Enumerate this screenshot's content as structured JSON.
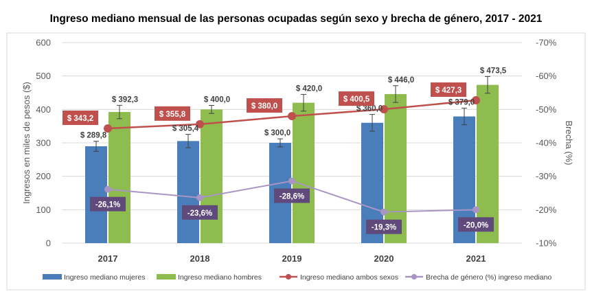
{
  "chart_data": {
    "type": "bar",
    "title": "Ingreso mediano mensual de las personas ocupadas según sexo y brecha de género, 2017 - 2021",
    "categories": [
      "2017",
      "2018",
      "2019",
      "2020",
      "2021"
    ],
    "ylabel": "Ingresos en miles de pesos ($)",
    "ylabel_right": "Brecha (%)",
    "ylim": [
      0,
      600
    ],
    "yticks": [
      "0",
      "100",
      "200",
      "300",
      "400",
      "500",
      "600"
    ],
    "ylim_right": [
      -10,
      -70
    ],
    "yticks_right": [
      "-10%",
      "-20%",
      "-30%",
      "-40%",
      "-50%",
      "-60%",
      "-70%"
    ],
    "grid": true,
    "legend_position": "bottom",
    "series": [
      {
        "name": "Ingreso mediano mujeres",
        "kind": "bar",
        "axis": "left",
        "color": "#4a7ebb",
        "values": [
          289.8,
          305.4,
          300.0,
          360.0,
          379.0
        ],
        "labels": [
          "$ 289,8",
          "$ 305,4",
          "$ 300,0",
          "$ 360,0",
          "$ 379,0"
        ],
        "errors": [
          15,
          20,
          12,
          25,
          25
        ]
      },
      {
        "name": "Ingreso mediano hombres",
        "kind": "bar",
        "axis": "left",
        "color": "#8fbc4f",
        "values": [
          392.3,
          400.0,
          420.0,
          446.0,
          473.5
        ],
        "labels": [
          "$ 392,3",
          "$ 400,0",
          "$ 420,0",
          "$ 446,0",
          "$ 473,5"
        ],
        "errors": [
          20,
          12,
          25,
          25,
          25
        ]
      },
      {
        "name": "Ingreso mediano ambos sexos",
        "kind": "line",
        "axis": "left",
        "color": "#c0504d",
        "values": [
          343.2,
          355.8,
          380.0,
          400.5,
          427.3
        ],
        "labels": [
          "$ 343,2",
          "$ 355,8",
          "$ 380,0",
          "$ 400,5",
          "$ 427,3"
        ]
      },
      {
        "name": "Brecha de género (%) ingreso mediano",
        "kind": "line",
        "axis": "right",
        "color": "#a895c4",
        "label_bg": "#604a7b",
        "values": [
          -26.1,
          -23.6,
          -28.6,
          -19.3,
          -20.0
        ],
        "labels": [
          "-26,1%",
          "-23,6%",
          "-28,6%",
          "-19,3%",
          "-20,0%"
        ]
      }
    ]
  }
}
